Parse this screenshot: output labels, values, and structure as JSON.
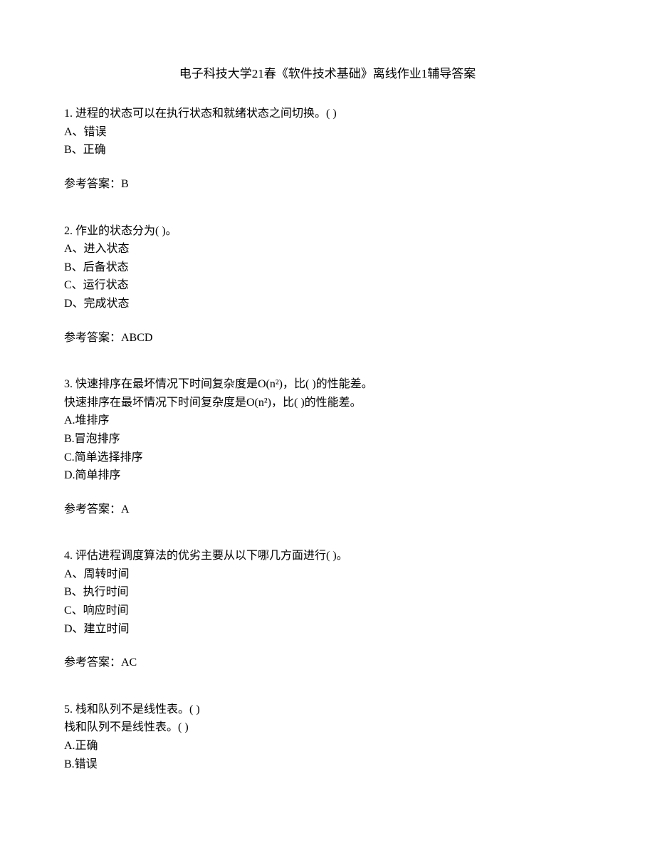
{
  "title": "电子科技大学21春《软件技术基础》离线作业1辅导答案",
  "questions": [
    {
      "stem": "1. 进程的状态可以在执行状态和就绪状态之间切换。(  )",
      "options": [
        "A、错误",
        "B、正确"
      ],
      "answer": "参考答案：B"
    },
    {
      "stem": "2. 作业的状态分为(  )。",
      "options": [
        "A、进入状态",
        "B、后备状态",
        "C、运行状态",
        "D、完成状态"
      ],
      "answer": "参考答案：ABCD"
    },
    {
      "stem": "3. 快速排序在最坏情况下时间复杂度是O(n²)，比(  )的性能差。",
      "stem2": "快速排序在最坏情况下时间复杂度是O(n²)，比(  )的性能差。",
      "options": [
        "A.堆排序",
        "B.冒泡排序",
        "C.简单选择排序",
        "D.简单排序"
      ],
      "answer": "参考答案：A"
    },
    {
      "stem": "4. 评估进程调度算法的优劣主要从以下哪几方面进行(  )。",
      "options": [
        "A、周转时间",
        "B、执行时间",
        "C、响应时间",
        "D、建立时间"
      ],
      "answer": "参考答案：AC"
    },
    {
      "stem": "5. 栈和队列不是线性表。(  )",
      "stem2": "栈和队列不是线性表。(  )",
      "options": [
        "A.正确",
        "B.错误"
      ],
      "answer": ""
    }
  ]
}
